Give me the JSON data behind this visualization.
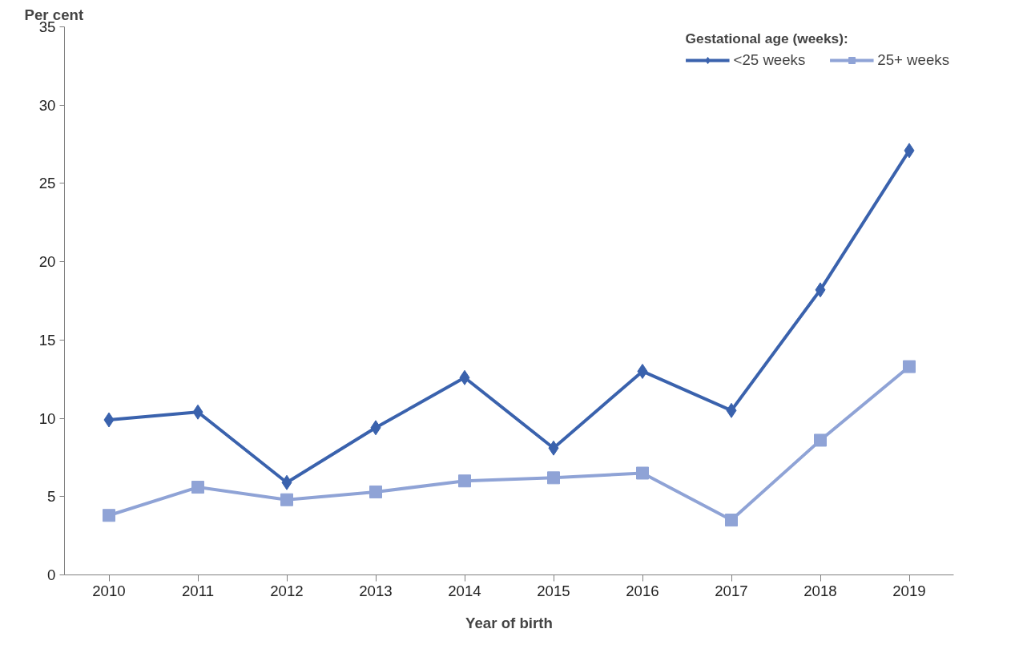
{
  "chart_data": {
    "type": "line",
    "xlabel": "Year of birth",
    "ylabel": "Per cent",
    "legend_title": "Gestational age (weeks):",
    "categories": [
      "2010",
      "2011",
      "2012",
      "2013",
      "2014",
      "2015",
      "2016",
      "2017",
      "2018",
      "2019"
    ],
    "series": [
      {
        "name": "<25 weeks",
        "color": "#3a62ad",
        "marker": "diamond",
        "values": [
          9.9,
          10.4,
          5.9,
          9.4,
          12.6,
          8.1,
          13.0,
          10.5,
          18.2,
          27.1
        ]
      },
      {
        "name": "25+ weeks",
        "color": "#8fa3d6",
        "marker": "square",
        "values": [
          3.8,
          5.6,
          4.8,
          5.3,
          6.0,
          6.2,
          6.5,
          3.5,
          8.6,
          13.3
        ]
      }
    ],
    "ylim": [
      0,
      35
    ],
    "yticks": [
      0,
      5,
      10,
      15,
      20,
      25,
      30,
      35
    ],
    "grid": false,
    "legend": "top right",
    "line_style": "solid"
  }
}
